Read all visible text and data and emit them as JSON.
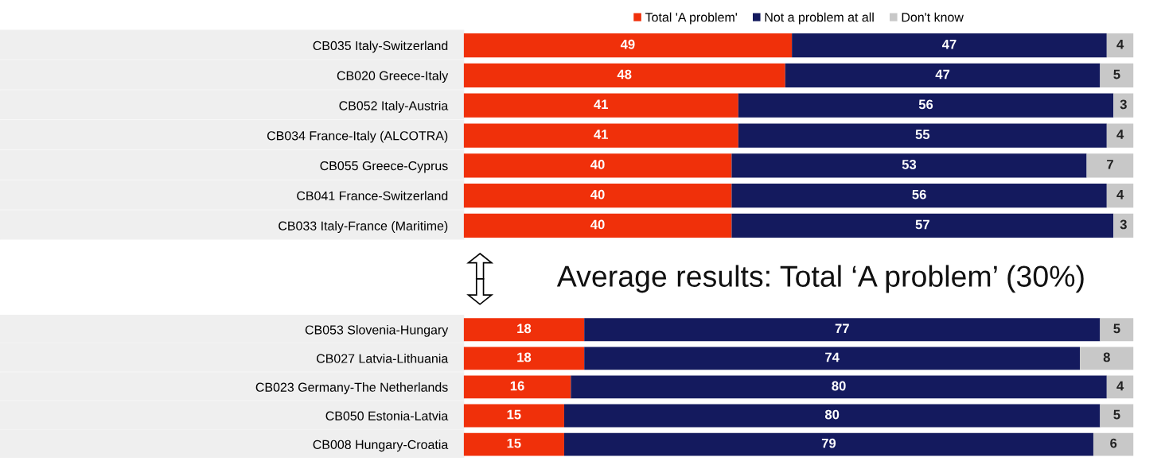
{
  "chart_data": [
    {
      "type": "bar",
      "orientation": "horizontal",
      "stacked": true,
      "data_labels": true,
      "legend": "top",
      "grid": false,
      "categories": [
        "CB035 Italy-Switzerland",
        "CB020 Greece-Italy",
        "CB052 Italy-Austria",
        "CB034 France-Italy (ALCOTRA)",
        "CB055 Greece-Cyprus",
        "CB041 France-Switzerland",
        "CB033 Italy-France (Maritime)"
      ],
      "series": [
        {
          "name": "Total 'A problem'",
          "color": "#f0300a",
          "values": [
            49,
            48,
            41,
            41,
            40,
            40,
            40
          ]
        },
        {
          "name": "Not a problem at all",
          "color": "#141a5e",
          "values": [
            47,
            47,
            56,
            55,
            53,
            56,
            57
          ]
        },
        {
          "name": "Don't know",
          "color": "#c8c8c8",
          "values": [
            4,
            5,
            3,
            4,
            7,
            4,
            3
          ]
        }
      ],
      "annotations": [
        "Average results: Total ‘A problem’ (30%)"
      ]
    },
    {
      "type": "bar",
      "orientation": "horizontal",
      "stacked": true,
      "data_labels": true,
      "grid": false,
      "categories": [
        "CB053 Slovenia-Hungary",
        "CB027 Latvia-Lithuania",
        "CB023 Germany-The Netherlands",
        "CB050 Estonia-Latvia",
        "CB008 Hungary-Croatia"
      ],
      "series": [
        {
          "color": "#f0300a",
          "values": [
            18,
            18,
            16,
            15,
            15
          ]
        },
        {
          "color": "#141a5e",
          "values": [
            77,
            74,
            80,
            80,
            79
          ]
        },
        {
          "color": "#c8c8c8",
          "values": [
            5,
            8,
            4,
            5,
            6
          ]
        }
      ]
    }
  ]
}
